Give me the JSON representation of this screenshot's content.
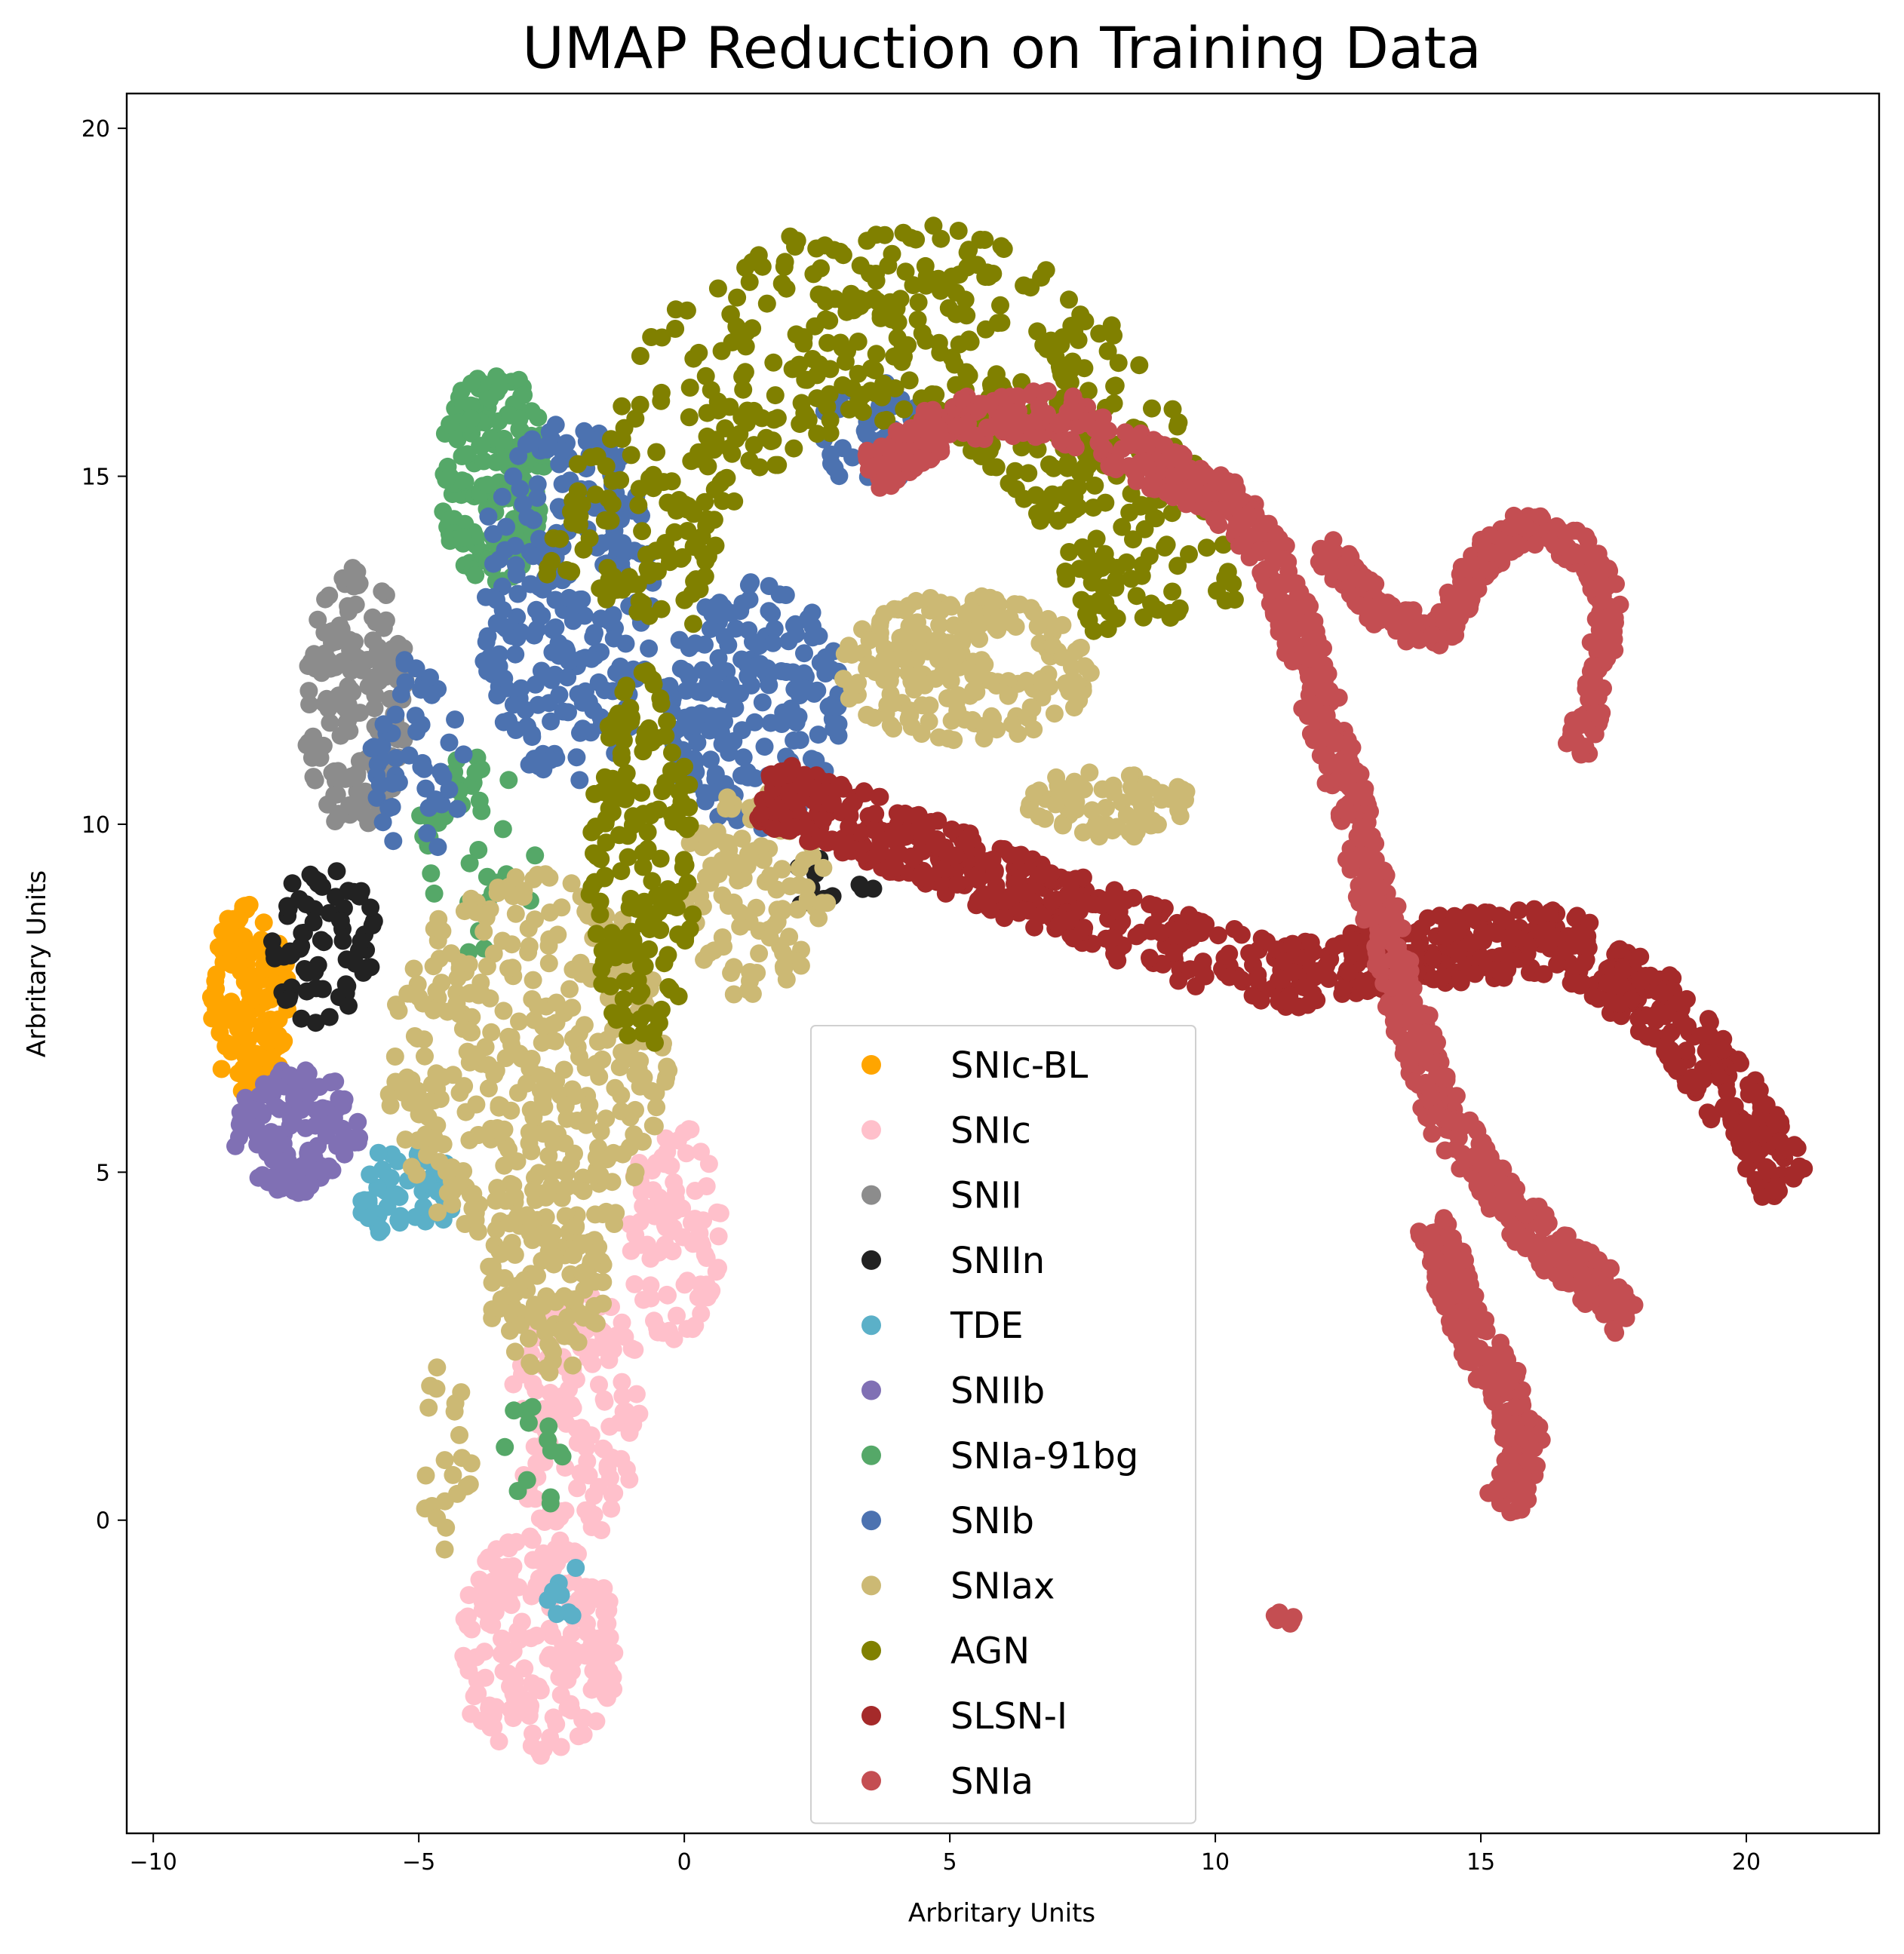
{
  "chart_data": {
    "type": "scatter",
    "title": "UMAP Reduction on Training Data",
    "xlabel": "Arbritary Units",
    "ylabel": "Arbritary Units",
    "xlim": [
      -10.5,
      22.5
    ],
    "ylim": [
      -4.5,
      20.5
    ],
    "xticks": [
      -10,
      -5,
      0,
      5,
      10,
      15,
      20
    ],
    "xtick_labels": [
      "−10",
      "−5",
      "0",
      "5",
      "10",
      "15",
      "20"
    ],
    "yticks": [
      0,
      5,
      10,
      15,
      20
    ],
    "ytick_labels": [
      "0",
      "5",
      "10",
      "15",
      "20"
    ],
    "grid": false,
    "legend_position": "lower-center",
    "series": [
      {
        "name": "SNIc-BL",
        "color": "#FFA500",
        "clusters": [
          {
            "cx": -8.2,
            "cy": 7.5,
            "rx": 0.75,
            "ry": 1.5,
            "n": 140
          }
        ]
      },
      {
        "name": "SNIc",
        "color": "#FFC0CB",
        "clusters": [
          {
            "cx": -2.8,
            "cy": -1.8,
            "rx": 1.6,
            "ry": 1.6,
            "n": 200
          },
          {
            "cx": -2.0,
            "cy": 1.5,
            "rx": 1.3,
            "ry": 1.8,
            "n": 140
          },
          {
            "cx": -0.2,
            "cy": 4.2,
            "rx": 0.9,
            "ry": 1.6,
            "n": 90
          }
        ]
      },
      {
        "name": "SNII",
        "color": "#8C8C8C",
        "clusters": [
          {
            "cx": -6.2,
            "cy": 11.8,
            "rx": 1.0,
            "ry": 1.9,
            "n": 160
          }
        ]
      },
      {
        "name": "SNIIn",
        "color": "#222222",
        "clusters": [
          {
            "cx": -6.8,
            "cy": 8.3,
            "rx": 1.0,
            "ry": 1.2,
            "n": 70
          },
          {
            "cx": 2.5,
            "cy": 9.2,
            "rx": 1.2,
            "ry": 0.4,
            "n": 12
          }
        ]
      },
      {
        "name": "TDE",
        "color": "#5BB0C8",
        "clusters": [
          {
            "cx": -5.2,
            "cy": 4.7,
            "rx": 1.0,
            "ry": 0.7,
            "n": 50
          },
          {
            "cx": -2.3,
            "cy": -1.0,
            "rx": 0.3,
            "ry": 0.6,
            "n": 8
          }
        ]
      },
      {
        "name": "SNIIb",
        "color": "#8070B4",
        "clusters": [
          {
            "cx": -7.3,
            "cy": 5.6,
            "rx": 1.2,
            "ry": 0.9,
            "n": 130
          }
        ]
      },
      {
        "name": "SNIa-91bg",
        "color": "#55A868",
        "clusters": [
          {
            "cx": -3.6,
            "cy": 15.0,
            "rx": 1.0,
            "ry": 1.6,
            "n": 170
          },
          {
            "cx": -4.0,
            "cy": 9.5,
            "rx": 1.2,
            "ry": 1.5,
            "n": 40
          },
          {
            "cx": -2.8,
            "cy": 1.0,
            "rx": 0.6,
            "ry": 1.0,
            "n": 14
          }
        ]
      },
      {
        "name": "SNIb",
        "color": "#4C72B0",
        "clusters": [
          {
            "cx": -2.2,
            "cy": 13.2,
            "rx": 1.7,
            "ry": 2.6,
            "n": 240
          },
          {
            "cx": 1.3,
            "cy": 11.7,
            "rx": 1.7,
            "ry": 1.8,
            "n": 200
          },
          {
            "cx": 3.5,
            "cy": 15.6,
            "rx": 1.0,
            "ry": 0.8,
            "n": 40
          },
          {
            "cx": -5.0,
            "cy": 11.0,
            "rx": 0.9,
            "ry": 1.5,
            "n": 50
          }
        ]
      },
      {
        "name": "SNIax",
        "color": "#CCB974",
        "clusters": [
          {
            "cx": -2.9,
            "cy": 6.5,
            "rx": 2.7,
            "ry": 2.8,
            "n": 380
          },
          {
            "cx": -2.6,
            "cy": 3.3,
            "rx": 1.2,
            "ry": 1.2,
            "n": 90
          },
          {
            "cx": 1.3,
            "cy": 9.0,
            "rx": 1.4,
            "ry": 1.5,
            "n": 110
          },
          {
            "cx": 5.3,
            "cy": 12.2,
            "rx": 2.4,
            "ry": 1.1,
            "n": 220
          },
          {
            "cx": 8.0,
            "cy": 10.3,
            "rx": 1.6,
            "ry": 0.5,
            "n": 70
          },
          {
            "cx": -4.5,
            "cy": 1.0,
            "rx": 0.5,
            "ry": 1.5,
            "n": 22
          }
        ]
      },
      {
        "name": "AGN",
        "color": "#808000",
        "arc": {
          "cx": 3.8,
          "cy": 12.0,
          "r": 5.2,
          "a0": 10,
          "a1": 168,
          "width": 1.5,
          "n": 560
        },
        "clusters": [
          {
            "cx": -0.8,
            "cy": 9.5,
            "rx": 1.0,
            "ry": 2.8,
            "n": 170
          }
        ]
      },
      {
        "name": "SLSN-I",
        "color": "#A52A2A",
        "path": [
          [
            1.5,
            10.5
          ],
          [
            4.0,
            9.8
          ],
          [
            6.5,
            9.0
          ],
          [
            9.0,
            8.3
          ],
          [
            11.5,
            7.8
          ],
          [
            14.0,
            8.2
          ],
          [
            16.5,
            8.3
          ],
          [
            18.5,
            7.3
          ],
          [
            20.2,
            5.6
          ],
          [
            20.8,
            4.8
          ]
        ],
        "width": 0.5,
        "n": 900
      },
      {
        "name": "SNIa",
        "color": "#C44E52",
        "path": [
          [
            3.5,
            15.0
          ],
          [
            5.0,
            15.8
          ],
          [
            7.0,
            15.9
          ],
          [
            9.0,
            15.1
          ],
          [
            10.5,
            14.5
          ],
          [
            11.2,
            13.6
          ],
          [
            12.0,
            11.7
          ],
          [
            12.8,
            9.6
          ],
          [
            13.5,
            7.6
          ],
          [
            14.3,
            5.8
          ],
          [
            15.2,
            4.8
          ],
          [
            16.3,
            3.9
          ],
          [
            17.3,
            3.3
          ],
          [
            17.8,
            2.9
          ]
        ],
        "path2": [
          [
            14.1,
            4.3
          ],
          [
            14.6,
            3.1
          ],
          [
            15.2,
            2.2
          ],
          [
            15.6,
            1.7
          ],
          [
            15.9,
            0.9
          ],
          [
            15.4,
            0.2
          ]
        ],
        "path3": [
          [
            12.0,
            14.0
          ],
          [
            13.3,
            12.9
          ],
          [
            14.3,
            12.8
          ],
          [
            15.0,
            13.8
          ],
          [
            15.8,
            14.3
          ],
          [
            16.8,
            14.0
          ],
          [
            17.4,
            13.3
          ],
          [
            17.2,
            12.0
          ],
          [
            16.8,
            11.0
          ]
        ],
        "blob": {
          "cx": 11.3,
          "cy": -1.4,
          "rx": 0.2,
          "ry": 0.12,
          "n": 6
        },
        "width": 0.35,
        "n": 900
      }
    ]
  }
}
